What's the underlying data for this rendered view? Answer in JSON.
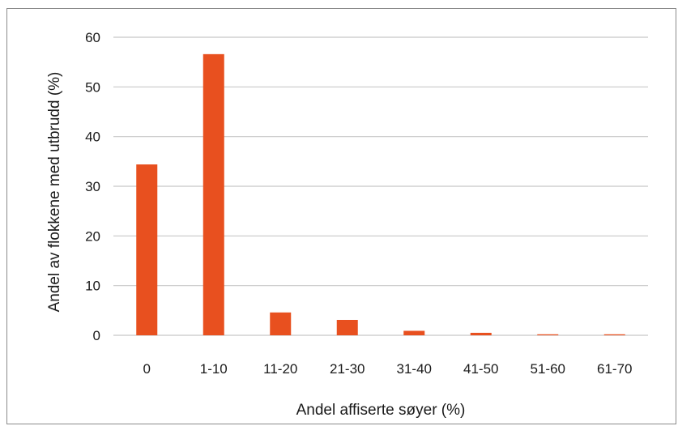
{
  "chart_data": {
    "type": "bar",
    "title": "",
    "xlabel": "Andel affiserte søyer (%)",
    "ylabel": "Andel  av flokkene med utbrudd (%)",
    "categories": [
      "0",
      "1-10",
      "11-20",
      "21-30",
      "31-40",
      "41-50",
      "51-60",
      "61-70"
    ],
    "values": [
      34.4,
      56.6,
      4.6,
      3.1,
      0.9,
      0.5,
      0.2,
      0.2
    ],
    "ylim": [
      0,
      60
    ],
    "yticks": [
      "0",
      "10",
      "20",
      "30",
      "40",
      "50",
      "60"
    ],
    "grid": true,
    "legend": "none",
    "colors": {
      "bar": "#e8501f",
      "grid": "#c8c8c8",
      "frame": "#8a8a8a"
    }
  }
}
